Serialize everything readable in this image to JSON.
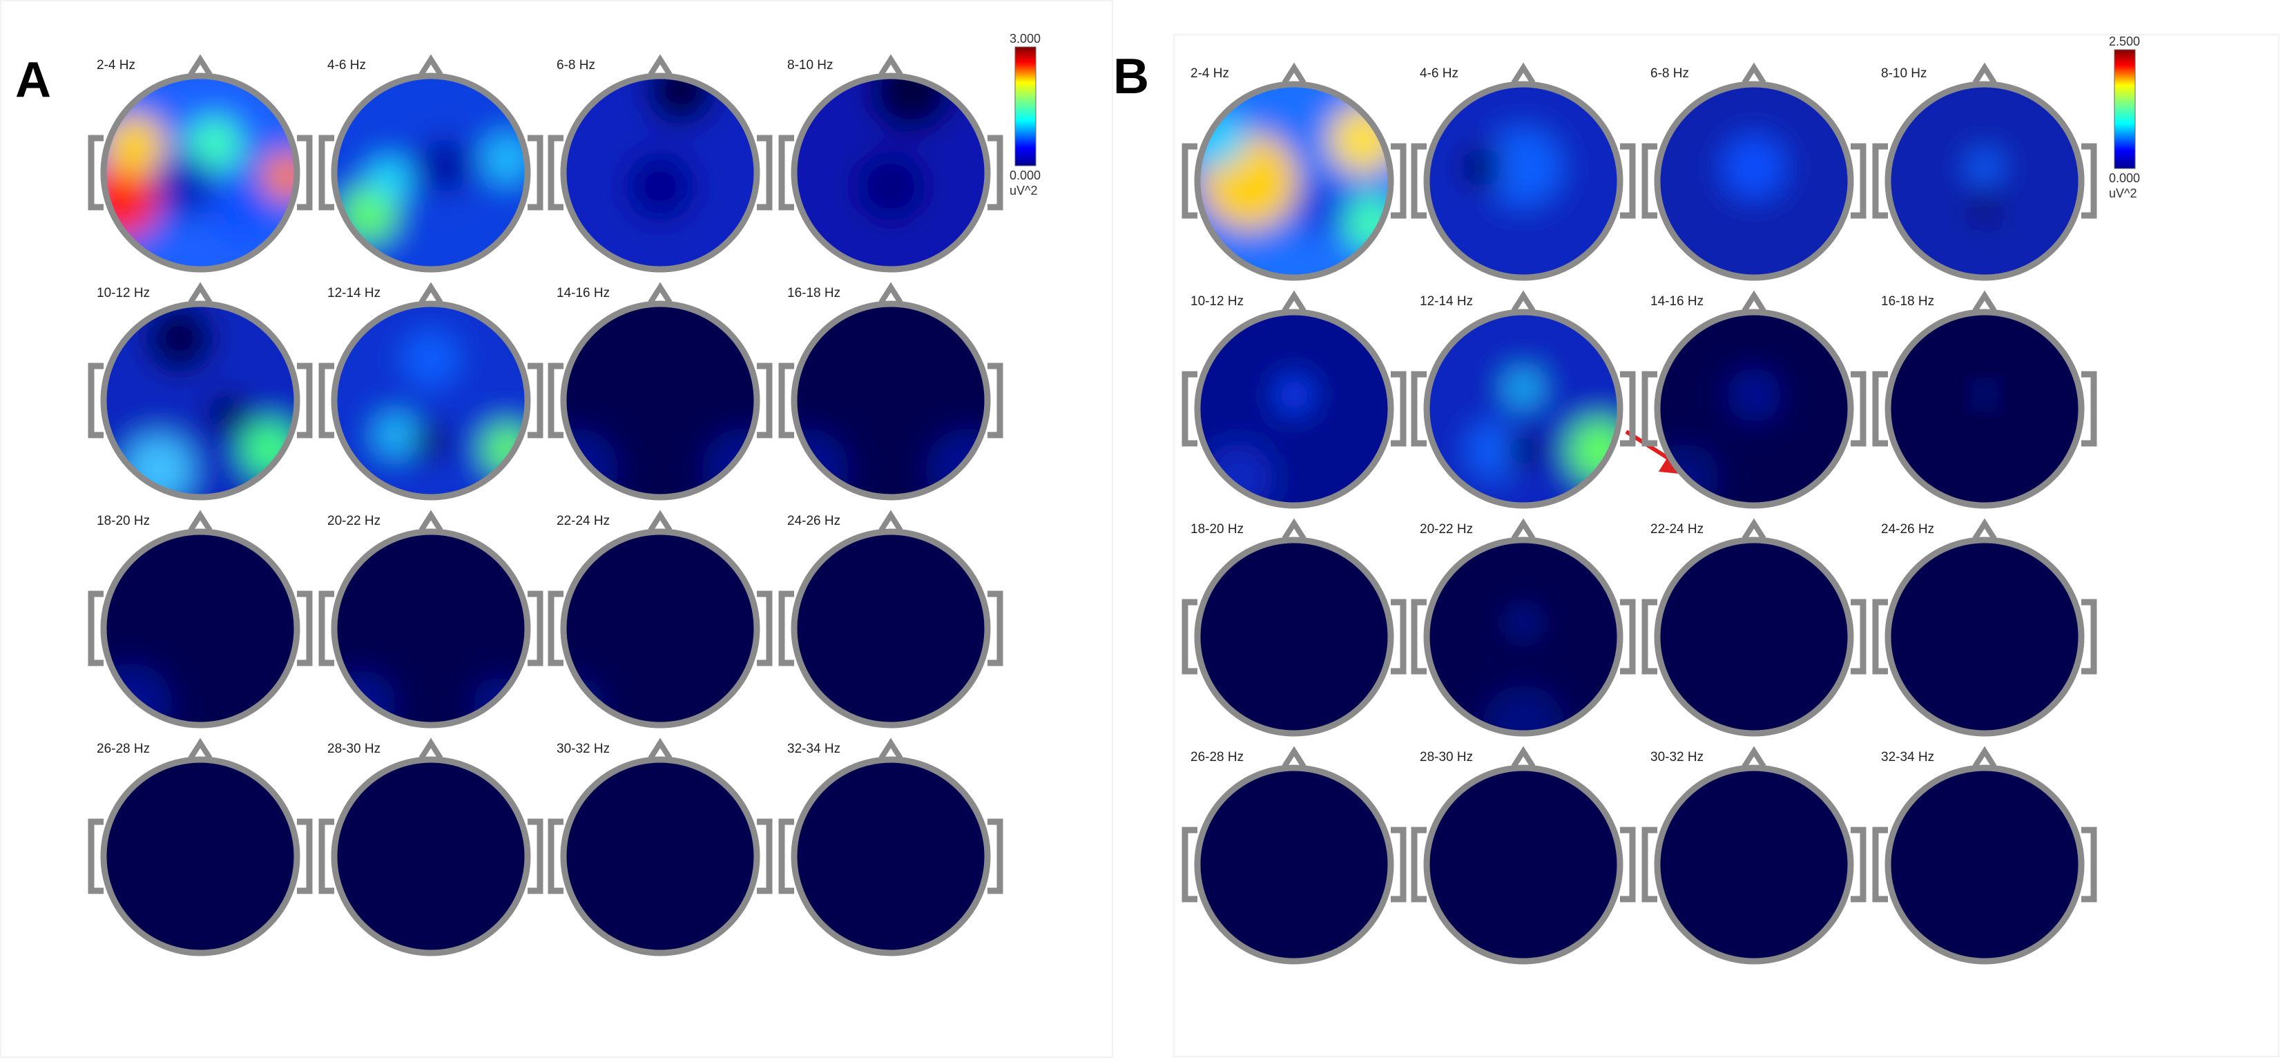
{
  "panels": [
    {
      "letter": "A",
      "maps": [
        "2-4 Hz",
        "4-6 Hz",
        "6-8 Hz",
        "8-10 Hz",
        "10-12 Hz",
        "12-14 Hz",
        "14-16 Hz",
        "16-18 Hz",
        "18-20 Hz",
        "20-22 Hz",
        "22-24 Hz",
        "24-26 Hz",
        "26-28 Hz",
        "28-30 Hz",
        "30-32 Hz",
        "32-34 Hz"
      ],
      "colorbar": {
        "max": "3.000",
        "min": "0.000",
        "unit": "uV^2"
      }
    },
    {
      "letter": "B",
      "maps": [
        "2-4 Hz",
        "4-6 Hz",
        "6-8 Hz",
        "8-10 Hz",
        "10-12 Hz",
        "12-14 Hz",
        "14-16 Hz",
        "16-18 Hz",
        "18-20 Hz",
        "20-22 Hz",
        "22-24 Hz",
        "24-26 Hz",
        "26-28 Hz",
        "28-30 Hz",
        "30-32 Hz",
        "32-34 Hz"
      ],
      "colorbar": {
        "max": "2.500",
        "min": "0.000",
        "unit": "uV^2"
      }
    }
  ]
}
